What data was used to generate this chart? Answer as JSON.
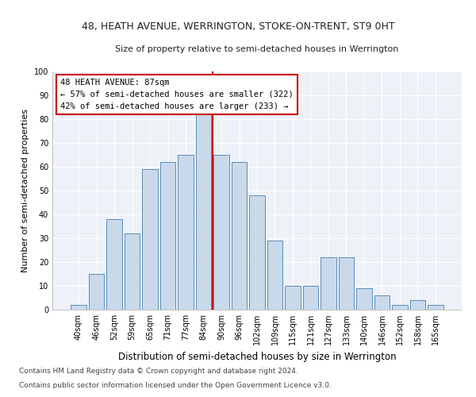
{
  "title1": "48, HEATH AVENUE, WERRINGTON, STOKE-ON-TRENT, ST9 0HT",
  "title2": "Size of property relative to semi-detached houses in Werrington",
  "xlabel": "Distribution of semi-detached houses by size in Werrington",
  "ylabel": "Number of semi-detached properties",
  "footnote1": "Contains HM Land Registry data © Crown copyright and database right 2024.",
  "footnote2": "Contains public sector information licensed under the Open Government Licence v3.0.",
  "annotation_title": "48 HEATH AVENUE: 87sqm",
  "annotation_line1": "← 57% of semi-detached houses are smaller (322)",
  "annotation_line2": "42% of semi-detached houses are larger (233) →",
  "bar_color": "#c9d9ea",
  "bar_edge_color": "#5b8db8",
  "line_color": "#cc0000",
  "annotation_box_edge_color": "#cc0000",
  "background_color": "#eef2f8",
  "categories": [
    "40sqm",
    "46sqm",
    "52sqm",
    "59sqm",
    "65sqm",
    "71sqm",
    "77sqm",
    "84sqm",
    "90sqm",
    "96sqm",
    "102sqm",
    "109sqm",
    "115sqm",
    "121sqm",
    "127sqm",
    "133sqm",
    "140sqm",
    "146sqm",
    "152sqm",
    "158sqm",
    "165sqm"
  ],
  "values": [
    2,
    15,
    38,
    32,
    59,
    62,
    65,
    82,
    65,
    62,
    48,
    29,
    10,
    10,
    22,
    22,
    9,
    6,
    2,
    4,
    2
  ],
  "ylim": [
    0,
    100
  ],
  "yticks": [
    0,
    10,
    20,
    30,
    40,
    50,
    60,
    70,
    80,
    90,
    100
  ],
  "vline_x": 7.5,
  "title1_fontsize": 9,
  "title2_fontsize": 8,
  "ylabel_fontsize": 8,
  "xlabel_fontsize": 8.5,
  "tick_fontsize": 7,
  "annotation_fontsize": 7.5,
  "footnote_fontsize": 6.5
}
